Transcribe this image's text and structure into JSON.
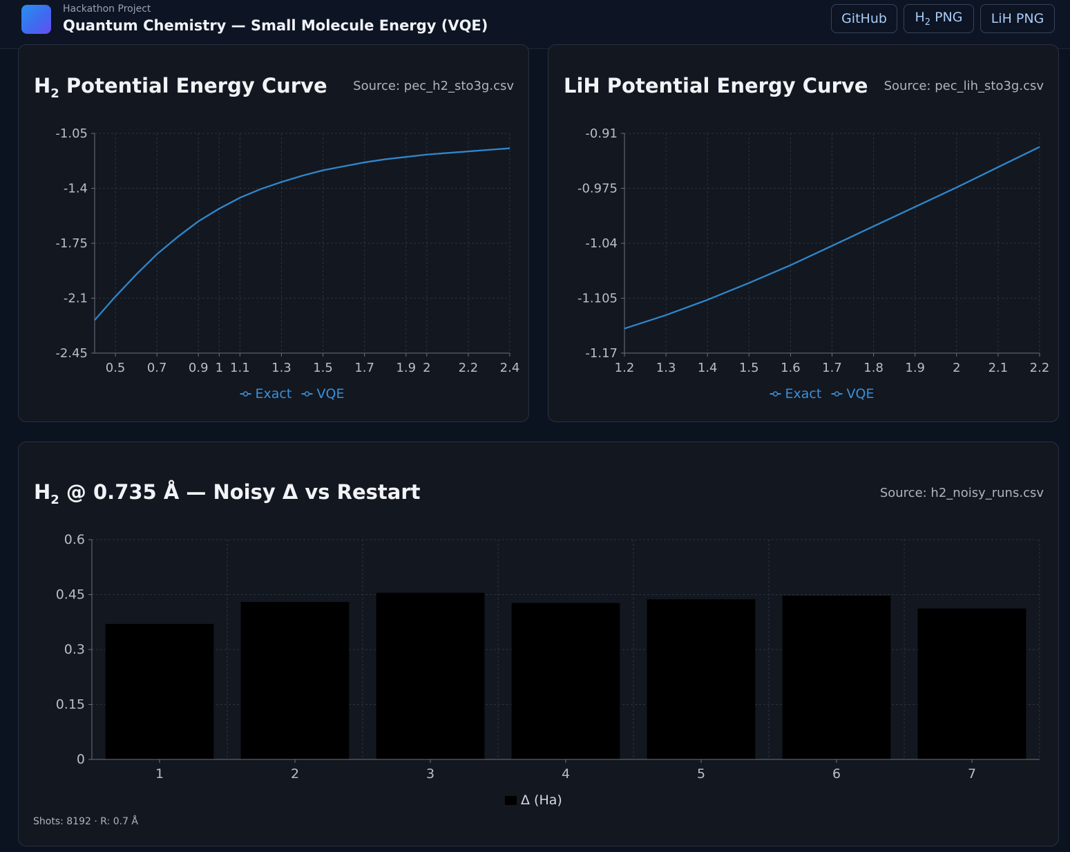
{
  "header": {
    "subtitle": "Hackathon Project",
    "title": "Quantum Chemistry — Small Molecule Energy (VQE)",
    "buttons": {
      "github": "GitHub",
      "h2_png_main": "H",
      "h2_png_sub": "2",
      "h2_png_rest": " PNG",
      "lih_png": "LiH PNG"
    }
  },
  "cards": {
    "h2_curve": {
      "title_main": "H",
      "title_sub": "2",
      "title_rest": " Potential Energy Curve",
      "source": "Source: pec_h2_sto3g.csv"
    },
    "lih_curve": {
      "title": "LiH Potential Energy Curve",
      "source": "Source: pec_lih_sto3g.csv"
    },
    "noisy": {
      "title_main": "H",
      "title_sub": "2",
      "title_rest": " @ 0.735 Å — Noisy Δ vs Restart",
      "source": "Source: h2_noisy_runs.csv",
      "footnote": "Shots: 8192 · R: 0.7 Å"
    }
  },
  "colors": {
    "line": "#2f86c9",
    "legend": "#3a90d8",
    "bar": "#000000",
    "grid": "#2c3340",
    "axis": "#6b7280",
    "tick_text": "#b9bec8"
  },
  "chart_data": [
    {
      "type": "line",
      "title": "",
      "xlabel": "",
      "ylabel": "",
      "xlim": [
        0.4,
        2.4
      ],
      "ylim": [
        -2.45,
        -1.05
      ],
      "x_ticks": [
        "0.5",
        "0.7",
        "0.9",
        "1",
        "1.1",
        "1.3",
        "1.5",
        "1.7",
        "1.9",
        "2",
        "2.2",
        "2.4"
      ],
      "y_ticks": [
        "-1.05",
        "-1.4",
        "-1.75",
        "-2.1",
        "-2.45"
      ],
      "grid": true,
      "legend": "bottom-center",
      "series": [
        {
          "name": "Exact",
          "x": [
            0.4,
            0.5,
            0.6,
            0.7,
            0.8,
            0.9,
            1.0,
            1.1,
            1.2,
            1.3,
            1.4,
            1.5,
            1.6,
            1.7,
            1.8,
            1.9,
            2.0,
            2.1,
            2.2,
            2.3,
            2.4
          ],
          "y": [
            -2.24,
            -2.09,
            -1.95,
            -1.82,
            -1.71,
            -1.61,
            -1.53,
            -1.46,
            -1.405,
            -1.36,
            -1.32,
            -1.285,
            -1.26,
            -1.235,
            -1.215,
            -1.2,
            -1.185,
            -1.175,
            -1.165,
            -1.155,
            -1.145
          ]
        },
        {
          "name": "VQE",
          "x": [
            0.4,
            0.5,
            0.6,
            0.7,
            0.8,
            0.9,
            1.0,
            1.1,
            1.2,
            1.3,
            1.4,
            1.5,
            1.6,
            1.7,
            1.8,
            1.9,
            2.0,
            2.1,
            2.2,
            2.3,
            2.4
          ],
          "y": [
            -2.24,
            -2.09,
            -1.95,
            -1.82,
            -1.71,
            -1.61,
            -1.53,
            -1.46,
            -1.405,
            -1.36,
            -1.32,
            -1.285,
            -1.26,
            -1.235,
            -1.215,
            -1.2,
            -1.185,
            -1.175,
            -1.165,
            -1.155,
            -1.145
          ]
        }
      ]
    },
    {
      "type": "line",
      "title": "",
      "xlabel": "",
      "ylabel": "",
      "xlim": [
        1.2,
        2.2
      ],
      "ylim": [
        -1.17,
        -0.91
      ],
      "x_ticks": [
        "1.2",
        "1.3",
        "1.4",
        "1.5",
        "1.6",
        "1.7",
        "1.8",
        "1.9",
        "2",
        "2.1",
        "2.2"
      ],
      "y_ticks": [
        "-0.91",
        "-0.975",
        "-1.04",
        "-1.105",
        "-1.17"
      ],
      "grid": true,
      "legend": "bottom-center",
      "series": [
        {
          "name": "Exact",
          "x": [
            1.2,
            1.3,
            1.4,
            1.5,
            1.6,
            1.7,
            1.8,
            1.9,
            2.0,
            2.1,
            2.2
          ],
          "y": [
            -1.141,
            -1.125,
            -1.107,
            -1.087,
            -1.066,
            -1.043,
            -1.02,
            -0.997,
            -0.974,
            -0.95,
            -0.926
          ]
        },
        {
          "name": "VQE",
          "x": [
            1.2,
            1.3,
            1.4,
            1.5,
            1.6,
            1.7,
            1.8,
            1.9,
            2.0,
            2.1,
            2.2
          ],
          "y": [
            -1.141,
            -1.125,
            -1.107,
            -1.087,
            -1.066,
            -1.043,
            -1.02,
            -0.997,
            -0.974,
            -0.95,
            -0.926
          ]
        }
      ]
    },
    {
      "type": "bar",
      "title": "",
      "xlabel": "",
      "ylabel": "",
      "categories": [
        "1",
        "2",
        "3",
        "4",
        "5",
        "6",
        "7"
      ],
      "ylim": [
        0,
        0.6
      ],
      "y_ticks": [
        "0.6",
        "0.45",
        "0.3",
        "0.15",
        "0"
      ],
      "grid": true,
      "legend": "bottom-center",
      "series": [
        {
          "name": "Δ (Ha)",
          "values": [
            0.37,
            0.43,
            0.455,
            0.427,
            0.437,
            0.447,
            0.412
          ]
        }
      ]
    }
  ]
}
